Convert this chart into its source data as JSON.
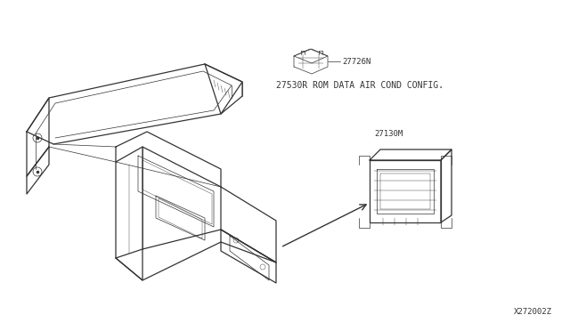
{
  "bg_color": "#ffffff",
  "fig_width": 6.4,
  "fig_height": 3.72,
  "dpi": 100,
  "diagram_code": "X272002Z",
  "part1_label": "27726N",
  "part1_desc": "27530R ROM DATA AIR COND CONFIG.",
  "part2_label": "27130M",
  "text_color": "#333333",
  "line_color": "#333333",
  "lw_main": 0.9,
  "lw_detail": 0.5,
  "lw_thin": 0.3
}
